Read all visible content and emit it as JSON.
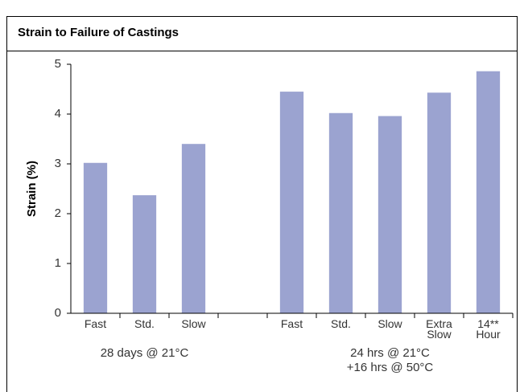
{
  "chart_data": {
    "type": "bar",
    "title": "Strain to Failure of Castings",
    "y_label": "Strain (%)",
    "categories": [
      "Fast",
      "Std.",
      "Slow",
      null,
      "Fast",
      "Std.",
      "Slow",
      "Extra Slow",
      "14** Hour"
    ],
    "values": [
      3.02,
      2.37,
      3.4,
      null,
      4.45,
      4.02,
      3.96,
      4.43,
      4.86
    ],
    "color": "#9ba3d0",
    "ylim": [
      0,
      5
    ],
    "yticks": [
      0,
      1,
      2,
      3,
      4,
      5
    ],
    "grid": false,
    "groups": [
      {
        "lines": [
          "28 days @ 21°C"
        ]
      },
      {
        "lines": [
          "24 hrs @ 21°C",
          "+16 hrs @ 50°C"
        ]
      }
    ]
  }
}
